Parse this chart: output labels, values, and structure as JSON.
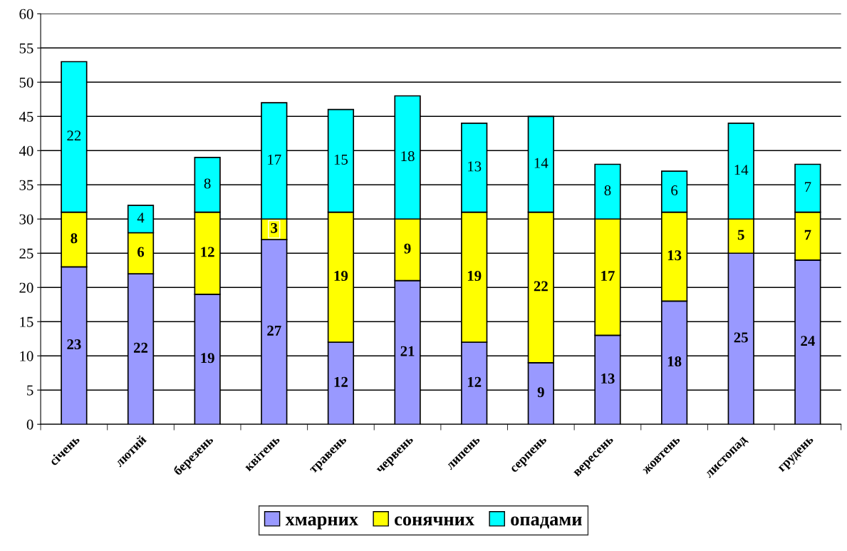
{
  "chart_data": {
    "type": "bar",
    "stacked": true,
    "categories": [
      "січень",
      "лютий",
      "березень",
      "квітень",
      "травень",
      "червень",
      "липень",
      "серпень",
      "вересень",
      "жовтень",
      "листопад",
      "грудень"
    ],
    "series": [
      {
        "name": "хмарних",
        "color": "#9999ff",
        "values": [
          23,
          22,
          19,
          27,
          12,
          21,
          12,
          9,
          13,
          18,
          25,
          24
        ]
      },
      {
        "name": "сонячних",
        "color": "#ffff00",
        "values": [
          8,
          6,
          12,
          3,
          19,
          9,
          19,
          22,
          17,
          13,
          5,
          7
        ]
      },
      {
        "name": "опадами",
        "color": "#00ffff",
        "values": [
          22,
          4,
          8,
          17,
          15,
          18,
          13,
          14,
          8,
          6,
          14,
          7
        ]
      }
    ],
    "ylim": [
      0,
      60
    ],
    "yticks": [
      0,
      5,
      10,
      15,
      20,
      25,
      30,
      35,
      40,
      45,
      50,
      55,
      60
    ],
    "grid": "y",
    "legend": "bottom",
    "data_labels": true
  }
}
